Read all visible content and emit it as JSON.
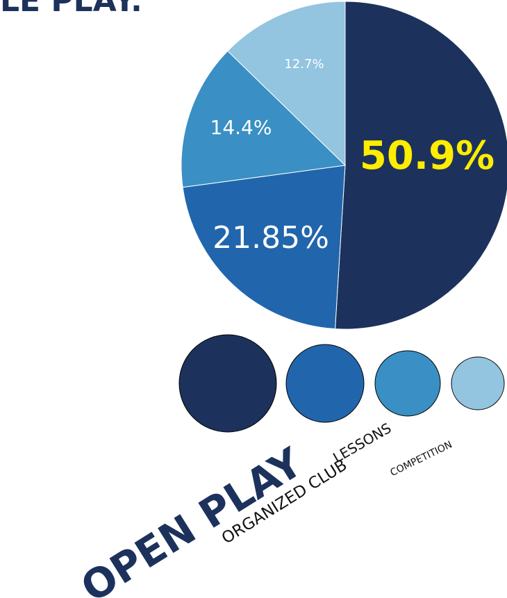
{
  "chart_data": {
    "type": "pie",
    "title": "LE PLAY.",
    "categories": [
      "OPEN PLAY",
      "ORGANIZED CLUB",
      "LESSONS",
      "COMPETITION"
    ],
    "values": [
      50.9,
      21.85,
      14.4,
      12.7
    ],
    "value_labels": [
      "50.9%",
      "21.85%",
      "14.4%",
      "12.7%"
    ],
    "colors": [
      "#1c325c",
      "#2166ac",
      "#3a8fc4",
      "#93c4e0"
    ],
    "highlight_color": "#ffed00"
  }
}
